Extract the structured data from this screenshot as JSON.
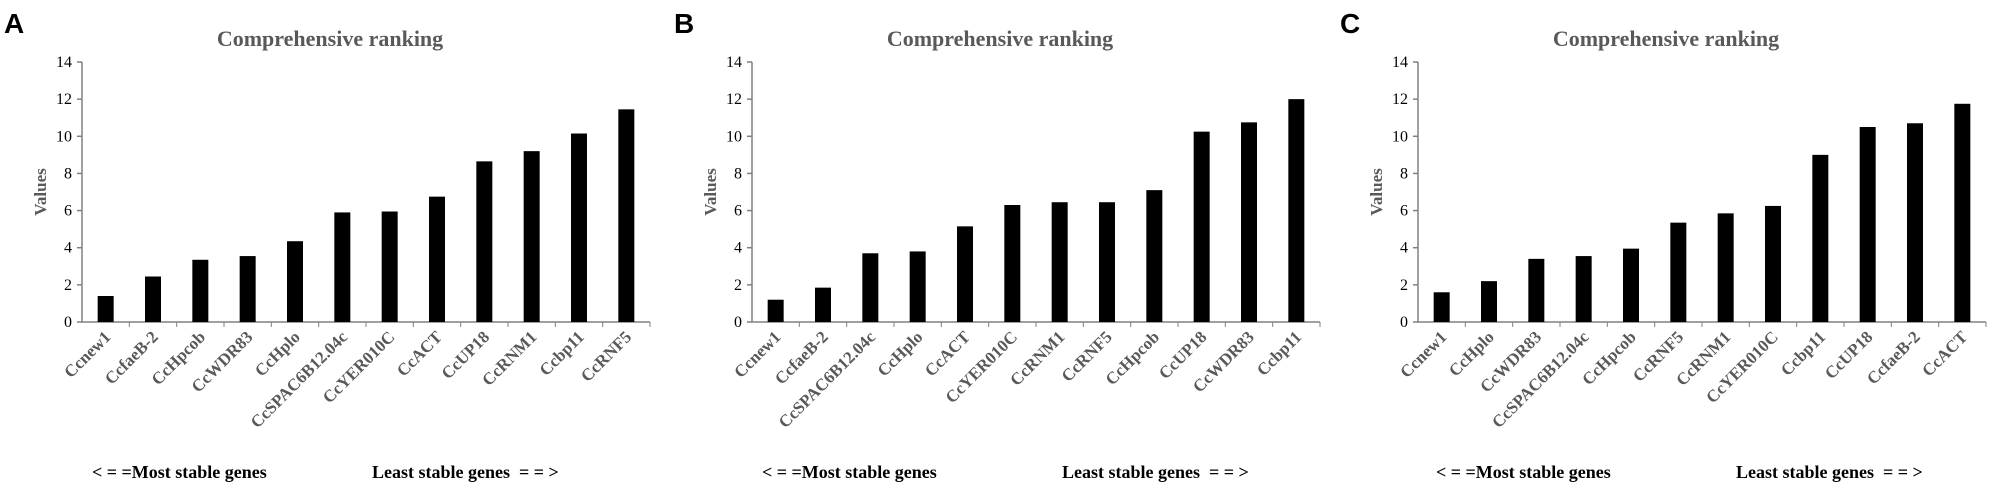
{
  "panels": [
    {
      "letter": "A",
      "footer_left": "< = =Most stable genes",
      "footer_right": "Least stable genes  = = >",
      "chart_data": {
        "type": "bar",
        "title": "Comprehensive ranking",
        "xlabel": "",
        "ylabel": "Values",
        "ylim": [
          0,
          14
        ],
        "yticks": [
          0,
          2,
          4,
          6,
          8,
          10,
          12,
          14
        ],
        "categories": [
          "Ccnew1",
          "CcfaeB-2",
          "CcHpcob",
          "CcWDR83",
          "CcHplo",
          "CcSPAC6B12.04c",
          "CcYER010C",
          "CcACT",
          "CcUP18",
          "CcRNM1",
          "Ccbp11",
          "CcRNF5"
        ],
        "values": [
          1.4,
          2.45,
          3.35,
          3.55,
          4.35,
          5.9,
          5.95,
          6.75,
          8.65,
          9.2,
          10.15,
          11.45
        ]
      }
    },
    {
      "letter": "B",
      "footer_left": "< = =Most stable genes",
      "footer_right": "Least stable genes  = = >",
      "chart_data": {
        "type": "bar",
        "title": "Comprehensive ranking",
        "xlabel": "",
        "ylabel": "Values",
        "ylim": [
          0,
          14
        ],
        "yticks": [
          0,
          2,
          4,
          6,
          8,
          10,
          12,
          14
        ],
        "categories": [
          "Ccnew1",
          "CcfaeB-2",
          "CcSPAC6B12.04c",
          "CcHplo",
          "CcACT",
          "CcYER010C",
          "CcRNM1",
          "CcRNF5",
          "CcHpcob",
          "CcUP18",
          "CcWDR83",
          "Ccbp11"
        ],
        "values": [
          1.2,
          1.85,
          3.7,
          3.8,
          5.15,
          6.3,
          6.45,
          6.45,
          7.1,
          10.25,
          10.75,
          12.0
        ]
      }
    },
    {
      "letter": "C",
      "footer_left": "< = =Most stable genes",
      "footer_right": "Least stable genes  = = >",
      "chart_data": {
        "type": "bar",
        "title": "Comprehensive ranking",
        "xlabel": "",
        "ylabel": "Values",
        "ylim": [
          0,
          14
        ],
        "yticks": [
          0,
          2,
          4,
          6,
          8,
          10,
          12,
          14
        ],
        "categories": [
          "Ccnew1",
          "CcHplo",
          "CcWDR83",
          "CcSPAC6B12.04c",
          "CcHpcob",
          "CcRNF5",
          "CcRNM1",
          "CcYER010C",
          "Ccbp11",
          "CcUP18",
          "CcfaeB-2",
          "CcACT"
        ],
        "values": [
          1.6,
          2.2,
          3.4,
          3.55,
          3.95,
          5.35,
          5.85,
          6.25,
          9.0,
          10.5,
          10.7,
          11.75
        ]
      }
    }
  ],
  "colors": {
    "bar": "#000000",
    "axis": "#808080",
    "title": "#595959"
  }
}
